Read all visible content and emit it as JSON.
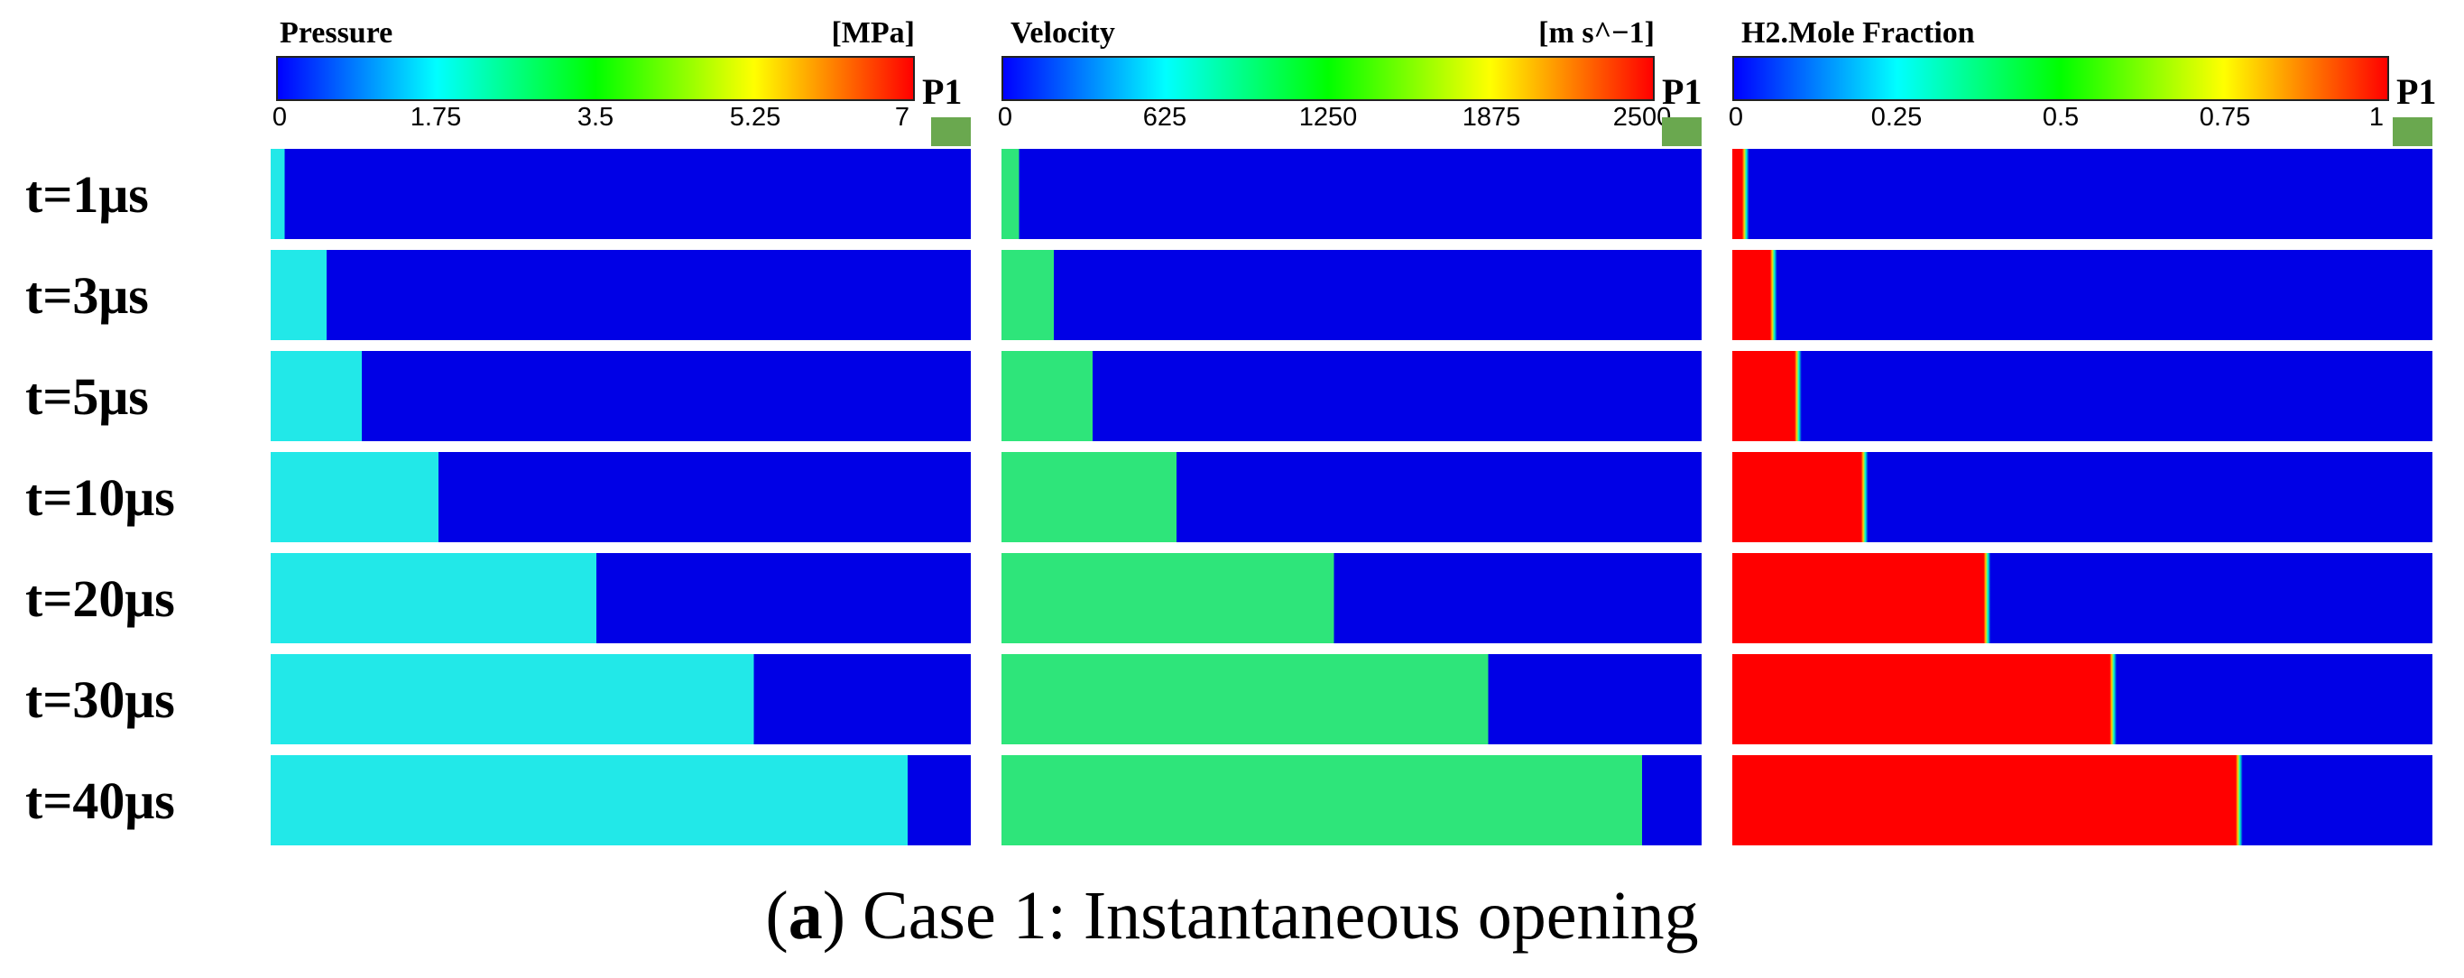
{
  "figure": {
    "caption_open": "(",
    "caption_letter": "a",
    "caption_rest": ") Case 1: Instantaneous opening",
    "probe_label": "P1"
  },
  "panels": [
    {
      "title": "Pressure",
      "unit": "[MPa]",
      "ticks": [
        "0",
        "1.75",
        "3.5",
        "5.25",
        "7"
      ],
      "colormap": [
        "#0000ff",
        "#00ffff",
        "#00ff00",
        "#ffff00",
        "#ff0000"
      ],
      "field_color": "#22e8e8",
      "background_color": "#0000e6",
      "front_positions": [
        0.02,
        0.08,
        0.13,
        0.24,
        0.465,
        0.69,
        0.91
      ]
    },
    {
      "title": "Velocity",
      "unit": "[m s^−1]",
      "ticks": [
        "0",
        "625",
        "1250",
        "1875",
        "2500"
      ],
      "colormap": [
        "#0000ff",
        "#00ffff",
        "#00ff00",
        "#ffff00",
        "#ff0000"
      ],
      "field_color": "#2ee57a",
      "background_color": "#0000e6",
      "front_positions": [
        0.025,
        0.075,
        0.13,
        0.25,
        0.475,
        0.695,
        0.915
      ]
    },
    {
      "title": "H2.Mole Fraction",
      "unit": "",
      "ticks": [
        "0",
        "0.25",
        "0.5",
        "0.75",
        "1"
      ],
      "colormap": [
        "#0000ff",
        "#00ffff",
        "#00ff00",
        "#ffff00",
        "#ff0000"
      ],
      "field_color": "#ff0000",
      "background_color": "#0000e6",
      "front_positions": [
        0.02,
        0.06,
        0.095,
        0.19,
        0.365,
        0.545,
        0.725
      ]
    }
  ],
  "times": [
    "t=1μs",
    "t=3μs",
    "t=5μs",
    "t=10μs",
    "t=20μs",
    "t=30μs",
    "t=40μs"
  ]
}
